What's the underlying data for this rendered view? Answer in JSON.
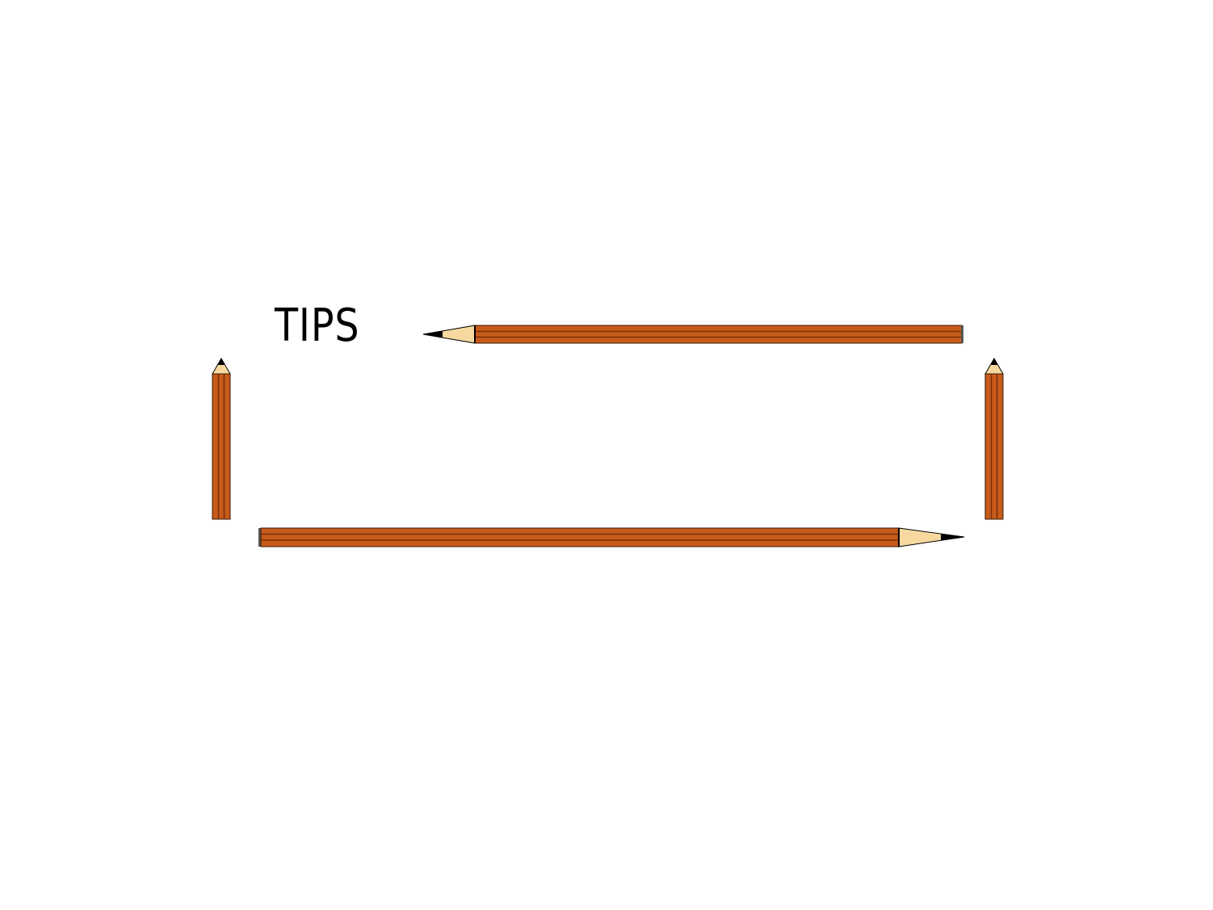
{
  "slide": {
    "title": "TIPS"
  },
  "decorations": [
    {
      "name": "top-horizontal-pencil-icon",
      "direction": "left"
    },
    {
      "name": "bottom-horizontal-pencil-icon",
      "direction": "right"
    },
    {
      "name": "left-vertical-pencil-icon",
      "direction": "up"
    },
    {
      "name": "right-vertical-pencil-icon",
      "direction": "up"
    }
  ],
  "colors": {
    "pencil_body": "#c75b1a",
    "pencil_stripe": "#7a2e08",
    "pencil_wood": "#f7d9a0",
    "pencil_lead": "#000000",
    "pencil_cap": "#555555",
    "background": "#ffffff"
  }
}
